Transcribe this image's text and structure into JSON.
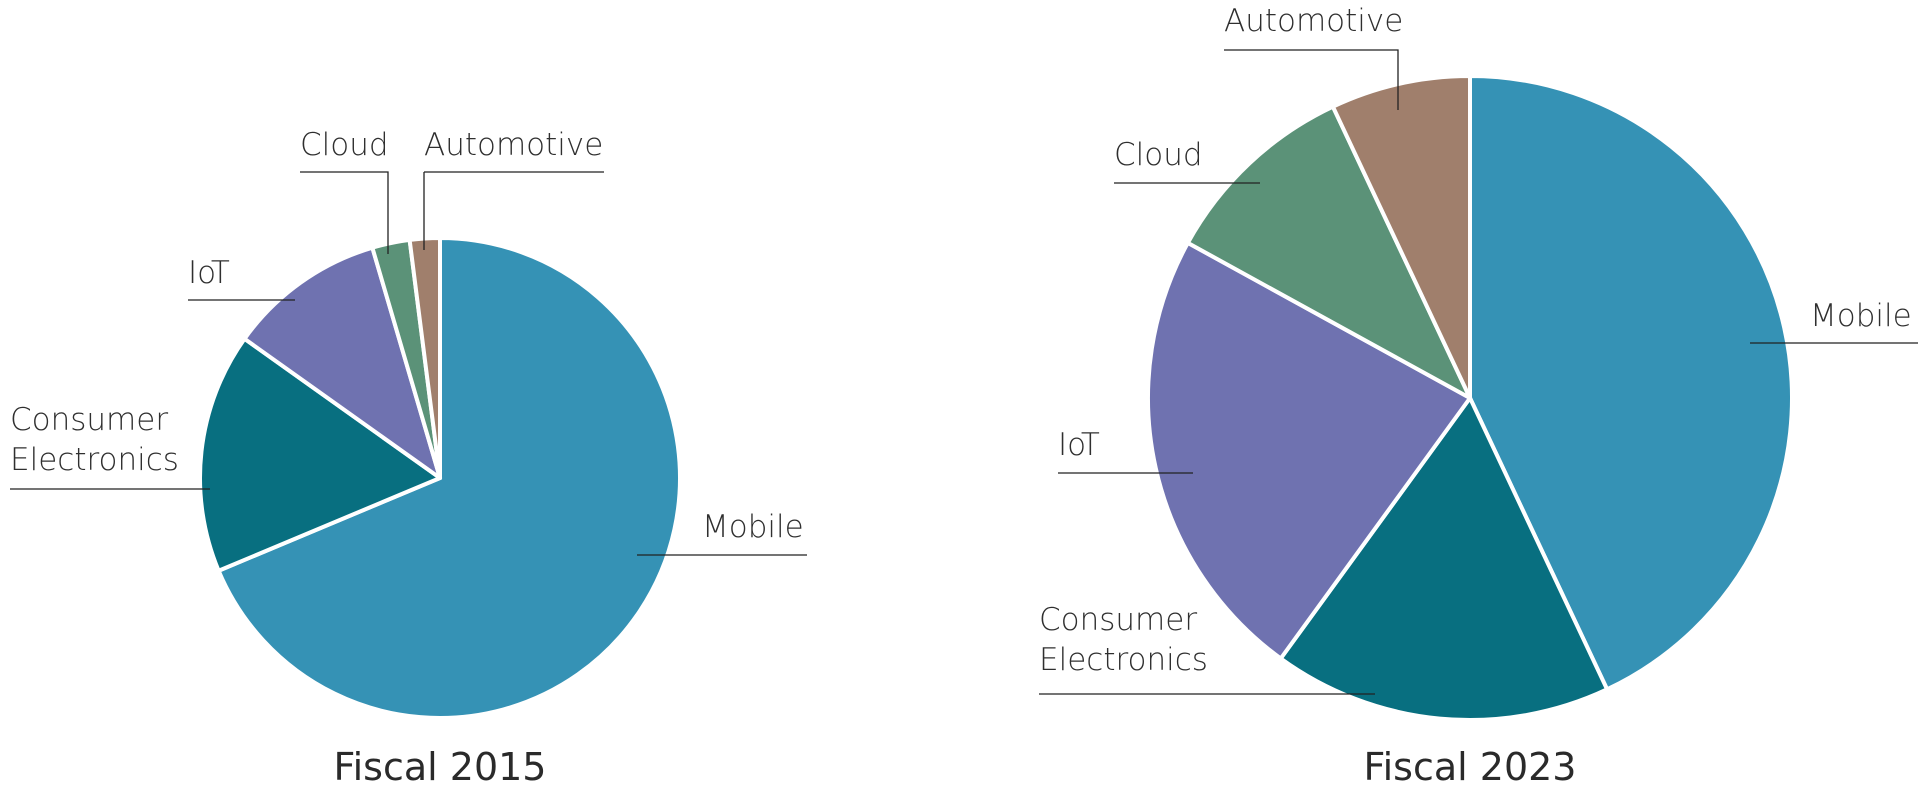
{
  "chart_data": [
    {
      "type": "pie",
      "title": "Fiscal 2015",
      "start": "12 o'clock",
      "direction": "clockwise",
      "slices": [
        {
          "label": "Mobile",
          "value": 68,
          "color": "#3592b5"
        },
        {
          "label": "Consumer Electronics",
          "lines": [
            "Consumer",
            "Electronics"
          ],
          "value": 16,
          "color": "#086f80"
        },
        {
          "label": "IoT",
          "value": 10.5,
          "color": "#6f72b0"
        },
        {
          "label": "Cloud",
          "value": 2.5,
          "color": "#5b9278"
        },
        {
          "label": "Automotive",
          "value": 2,
          "color": "#a07f6c"
        }
      ]
    },
    {
      "type": "pie",
      "title": "Fiscal 2023",
      "start": "12 o'clock",
      "direction": "clockwise",
      "slices": [
        {
          "label": "Mobile",
          "value": 43,
          "color": "#3592b5"
        },
        {
          "label": "Consumer Electronics",
          "lines": [
            "Consumer",
            "Electronics"
          ],
          "value": 17,
          "color": "#086f80"
        },
        {
          "label": "IoT",
          "value": 23,
          "color": "#6f72b0"
        },
        {
          "label": "Cloud",
          "value": 10,
          "color": "#5b9278"
        },
        {
          "label": "Automotive",
          "value": 7,
          "color": "#a07f6c"
        }
      ]
    }
  ]
}
